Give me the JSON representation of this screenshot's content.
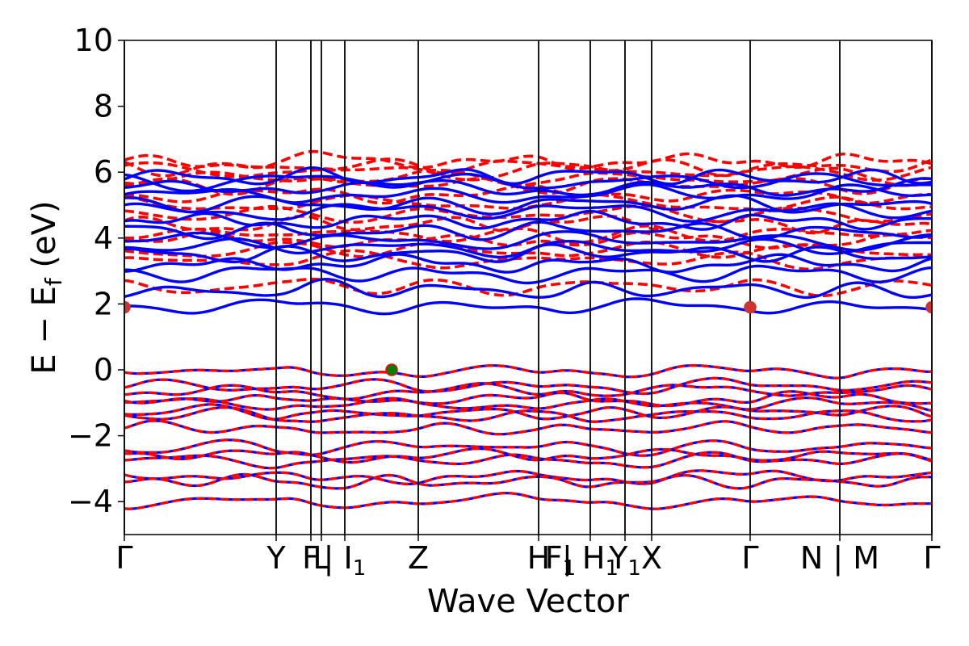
{
  "chart_data": {
    "type": "line",
    "title": "",
    "xlabel": "Wave Vector",
    "ylabel": "E − E_f (eV)",
    "ylabel_parts": {
      "main": "E − E",
      "sub": "f",
      "unit": " (eV)"
    },
    "ylim": [
      -5,
      10
    ],
    "yticks": [
      10,
      8,
      6,
      4,
      2,
      0,
      -2,
      -4
    ],
    "ytick_labels": [
      "10",
      "8",
      "6",
      "4",
      "2",
      "0",
      "−2",
      "−4"
    ],
    "xlim": [
      0,
      1
    ],
    "grid": false,
    "legend": "none",
    "kpoint_positions": [
      0,
      0.188,
      0.231,
      0.244,
      0.273,
      0.364,
      0.513,
      0.577,
      0.62,
      0.653,
      0.775,
      0.886,
      1.0
    ],
    "kpoint_labels": [
      {
        "x": 0.0,
        "text": "Γ"
      },
      {
        "x": 0.188,
        "text": "Y"
      },
      {
        "x": 0.231,
        "text": "F"
      },
      {
        "x": 0.244,
        "text": "L"
      },
      {
        "x": 0.273,
        "text": "| I",
        "sub": "1"
      },
      {
        "x": 0.364,
        "text": "Z"
      },
      {
        "x": 0.513,
        "text": "H"
      },
      {
        "x": 0.54,
        "text": "F",
        "sub": "1"
      },
      {
        "x": 0.577,
        "text": "| H",
        "sub": "1"
      },
      {
        "x": 0.62,
        "text": "Y",
        "sub": "1"
      },
      {
        "x": 0.653,
        "text": "X"
      },
      {
        "x": 0.775,
        "text": "Γ"
      },
      {
        "x": 0.886,
        "text": "N | M"
      },
      {
        "x": 1.0,
        "text": "Γ"
      }
    ],
    "series_styles": [
      {
        "id": "spin_up",
        "color": "#0000ff",
        "style": "solid"
      },
      {
        "id": "spin_down",
        "color": "#ff0000",
        "style": "dashed"
      }
    ],
    "valence_band_anchors": [
      0.0,
      -0.45,
      -0.6,
      -0.85,
      -1.0,
      -1.25,
      -1.35,
      -1.75,
      -2.3,
      -2.55,
      -2.7,
      -3.2,
      -3.35,
      -3.95
    ],
    "conduction_band_anchors": [
      1.9,
      2.4,
      2.9,
      3.2,
      3.5,
      3.7,
      3.9,
      4.2,
      4.5,
      4.8,
      5.0,
      5.3,
      5.5,
      5.7,
      5.85
    ],
    "conduction_down_anchors": [
      2.5,
      3.3,
      3.6,
      3.9,
      4.1,
      4.4,
      4.7,
      5.0,
      5.3,
      5.6,
      5.8,
      6.0,
      6.15,
      6.3
    ],
    "markers": [
      {
        "name": "cbm",
        "x": 0.0,
        "y": 1.9,
        "color": "#cc3333"
      },
      {
        "name": "cbm",
        "x": 0.775,
        "y": 1.9,
        "color": "#cc3333"
      },
      {
        "name": "cbm",
        "x": 1.0,
        "y": 1.9,
        "color": "#cc3333"
      },
      {
        "name": "vbm",
        "x": 0.331,
        "y": 0.0,
        "color": "#008000"
      }
    ]
  }
}
